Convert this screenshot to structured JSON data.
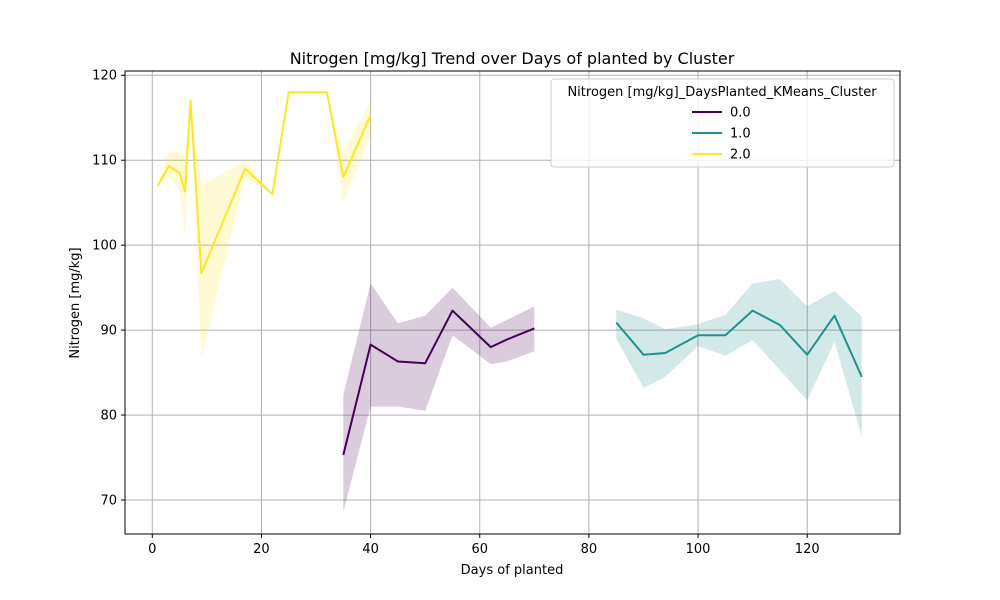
{
  "chart_data": {
    "type": "line",
    "title": "Nitrogen [mg/kg] Trend over Days of planted by Cluster",
    "xlabel": "Days of planted",
    "ylabel": "Nitrogen [mg/kg]",
    "xlim": [
      -5,
      137
    ],
    "ylim": [
      66,
      120.5
    ],
    "xticks": [
      0,
      20,
      40,
      60,
      80,
      100,
      120
    ],
    "yticks": [
      70,
      80,
      90,
      100,
      110,
      120
    ],
    "grid": true,
    "legend": {
      "title": "Nitrogen [mg/kg]_DaysPlanted_KMeans_Cluster",
      "position": "top-right"
    },
    "series": [
      {
        "name": "0.0",
        "color": "#440154",
        "points": [
          {
            "x": 35,
            "y": 75.3,
            "lo": 68.6,
            "hi": 82.4
          },
          {
            "x": 40,
            "y": 88.3,
            "lo": 81.0,
            "hi": 95.5
          },
          {
            "x": 45,
            "y": 86.3,
            "lo": 81.0,
            "hi": 90.8
          },
          {
            "x": 50,
            "y": 86.1,
            "lo": 80.5,
            "hi": 91.7
          },
          {
            "x": 55,
            "y": 92.3,
            "lo": 89.4,
            "hi": 95.0
          },
          {
            "x": 62,
            "y": 88.0,
            "lo": 86.0,
            "hi": 90.3
          },
          {
            "x": 65,
            "y": 88.9,
            "lo": 86.3,
            "hi": 91.2
          },
          {
            "x": 70,
            "y": 90.2,
            "lo": 87.5,
            "hi": 92.8
          }
        ]
      },
      {
        "name": "1.0",
        "color": "#21918c",
        "points": [
          {
            "x": 85,
            "y": 90.9,
            "lo": 89.0,
            "hi": 92.4
          },
          {
            "x": 90,
            "y": 87.1,
            "lo": 83.2,
            "hi": 91.4
          },
          {
            "x": 94,
            "y": 87.3,
            "lo": 84.5,
            "hi": 90.1
          },
          {
            "x": 100,
            "y": 89.4,
            "lo": 88.1,
            "hi": 90.7
          },
          {
            "x": 105,
            "y": 89.4,
            "lo": 87.0,
            "hi": 91.8
          },
          {
            "x": 110,
            "y": 92.3,
            "lo": 88.8,
            "hi": 95.5
          },
          {
            "x": 115,
            "y": 90.6,
            "lo": 85.3,
            "hi": 96.0
          },
          {
            "x": 120,
            "y": 87.1,
            "lo": 81.7,
            "hi": 92.8
          },
          {
            "x": 125,
            "y": 91.7,
            "lo": 88.6,
            "hi": 94.6
          },
          {
            "x": 130,
            "y": 84.5,
            "lo": 77.5,
            "hi": 91.6
          }
        ]
      },
      {
        "name": "2.0",
        "color": "#fde725",
        "points": [
          {
            "x": 1,
            "y": 107.0,
            "lo": 107.0,
            "hi": 107.0
          },
          {
            "x": 3,
            "y": 109.3,
            "lo": 108.0,
            "hi": 111.0
          },
          {
            "x": 5,
            "y": 108.5,
            "lo": 106.5,
            "hi": 111.0
          },
          {
            "x": 6,
            "y": 106.3,
            "lo": 101.0,
            "hi": 110.5
          },
          {
            "x": 7,
            "y": 117.0,
            "lo": 117.0,
            "hi": 117.0
          },
          {
            "x": 9,
            "y": 96.7,
            "lo": 86.6,
            "hi": 107.0
          },
          {
            "x": 17,
            "y": 109.0,
            "lo": 108.0,
            "hi": 110.0
          },
          {
            "x": 22,
            "y": 106.0,
            "lo": 106.0,
            "hi": 106.0
          },
          {
            "x": 25,
            "y": 118.0,
            "lo": 118.0,
            "hi": 118.0
          },
          {
            "x": 32,
            "y": 118.0,
            "lo": 118.0,
            "hi": 118.0
          },
          {
            "x": 35,
            "y": 108.0,
            "lo": 105.0,
            "hi": 111.0
          },
          {
            "x": 40,
            "y": 115.3,
            "lo": 113.0,
            "hi": 117.0
          }
        ]
      }
    ]
  }
}
